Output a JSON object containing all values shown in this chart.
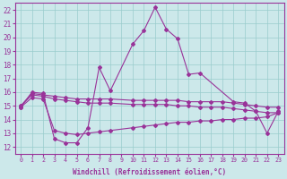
{
  "line_temp_x": [
    0,
    1,
    2,
    3,
    4,
    5,
    6,
    7,
    8,
    10,
    11,
    12,
    13,
    14,
    15,
    16,
    19,
    20,
    21,
    22,
    23
  ],
  "line_temp_y": [
    14.9,
    16.0,
    15.9,
    12.6,
    12.3,
    12.3,
    13.4,
    17.8,
    16.1,
    19.5,
    20.5,
    22.2,
    20.6,
    19.9,
    17.3,
    17.4,
    15.3,
    15.2,
    14.6,
    13.0,
    14.6
  ],
  "line_flat1_x": [
    0,
    1,
    2,
    3,
    4,
    5,
    6,
    7,
    8,
    10,
    11,
    12,
    13,
    14,
    15,
    16,
    17,
    18,
    19,
    20,
    21,
    22,
    23
  ],
  "line_flat1_y": [
    15.0,
    15.9,
    15.8,
    15.7,
    15.6,
    15.5,
    15.5,
    15.5,
    15.5,
    15.4,
    15.4,
    15.4,
    15.4,
    15.4,
    15.3,
    15.3,
    15.3,
    15.3,
    15.2,
    15.1,
    15.0,
    14.9,
    14.9
  ],
  "line_flat2_x": [
    0,
    1,
    2,
    3,
    4,
    5,
    6,
    7,
    8,
    10,
    11,
    12,
    13,
    14,
    15,
    16,
    17,
    18,
    19,
    20,
    21,
    22,
    23
  ],
  "line_flat2_y": [
    15.0,
    15.8,
    15.7,
    15.5,
    15.4,
    15.3,
    15.2,
    15.2,
    15.2,
    15.1,
    15.1,
    15.1,
    15.1,
    15.0,
    15.0,
    14.9,
    14.9,
    14.9,
    14.8,
    14.7,
    14.6,
    14.5,
    14.5
  ],
  "line_flat3_x": [
    0,
    1,
    2,
    3,
    4,
    5,
    6,
    7,
    8,
    10,
    11,
    12,
    13,
    14,
    15,
    16,
    17,
    18,
    19,
    20,
    21,
    22,
    23
  ],
  "line_flat3_y": [
    14.9,
    15.6,
    15.5,
    13.2,
    13.0,
    12.9,
    13.0,
    13.1,
    13.2,
    13.4,
    13.5,
    13.6,
    13.7,
    13.8,
    13.8,
    13.9,
    13.9,
    14.0,
    14.0,
    14.1,
    14.1,
    14.2,
    14.5
  ],
  "ylabel_ticks": [
    12,
    13,
    14,
    15,
    16,
    17,
    18,
    19,
    20,
    21,
    22
  ],
  "xlabel_ticks": [
    0,
    1,
    2,
    3,
    4,
    5,
    6,
    7,
    8,
    9,
    10,
    11,
    12,
    13,
    14,
    15,
    16,
    17,
    18,
    19,
    20,
    21,
    22,
    23
  ],
  "ylim": [
    11.5,
    22.5
  ],
  "xlim": [
    -0.5,
    23.5
  ],
  "line_color": "#993399",
  "bg_color": "#cce8ea",
  "grid_color": "#99cccc",
  "xlabel": "Windchill (Refroidissement éolien,°C)",
  "marker": "D",
  "markersize": 2.0,
  "linewidth": 0.8
}
